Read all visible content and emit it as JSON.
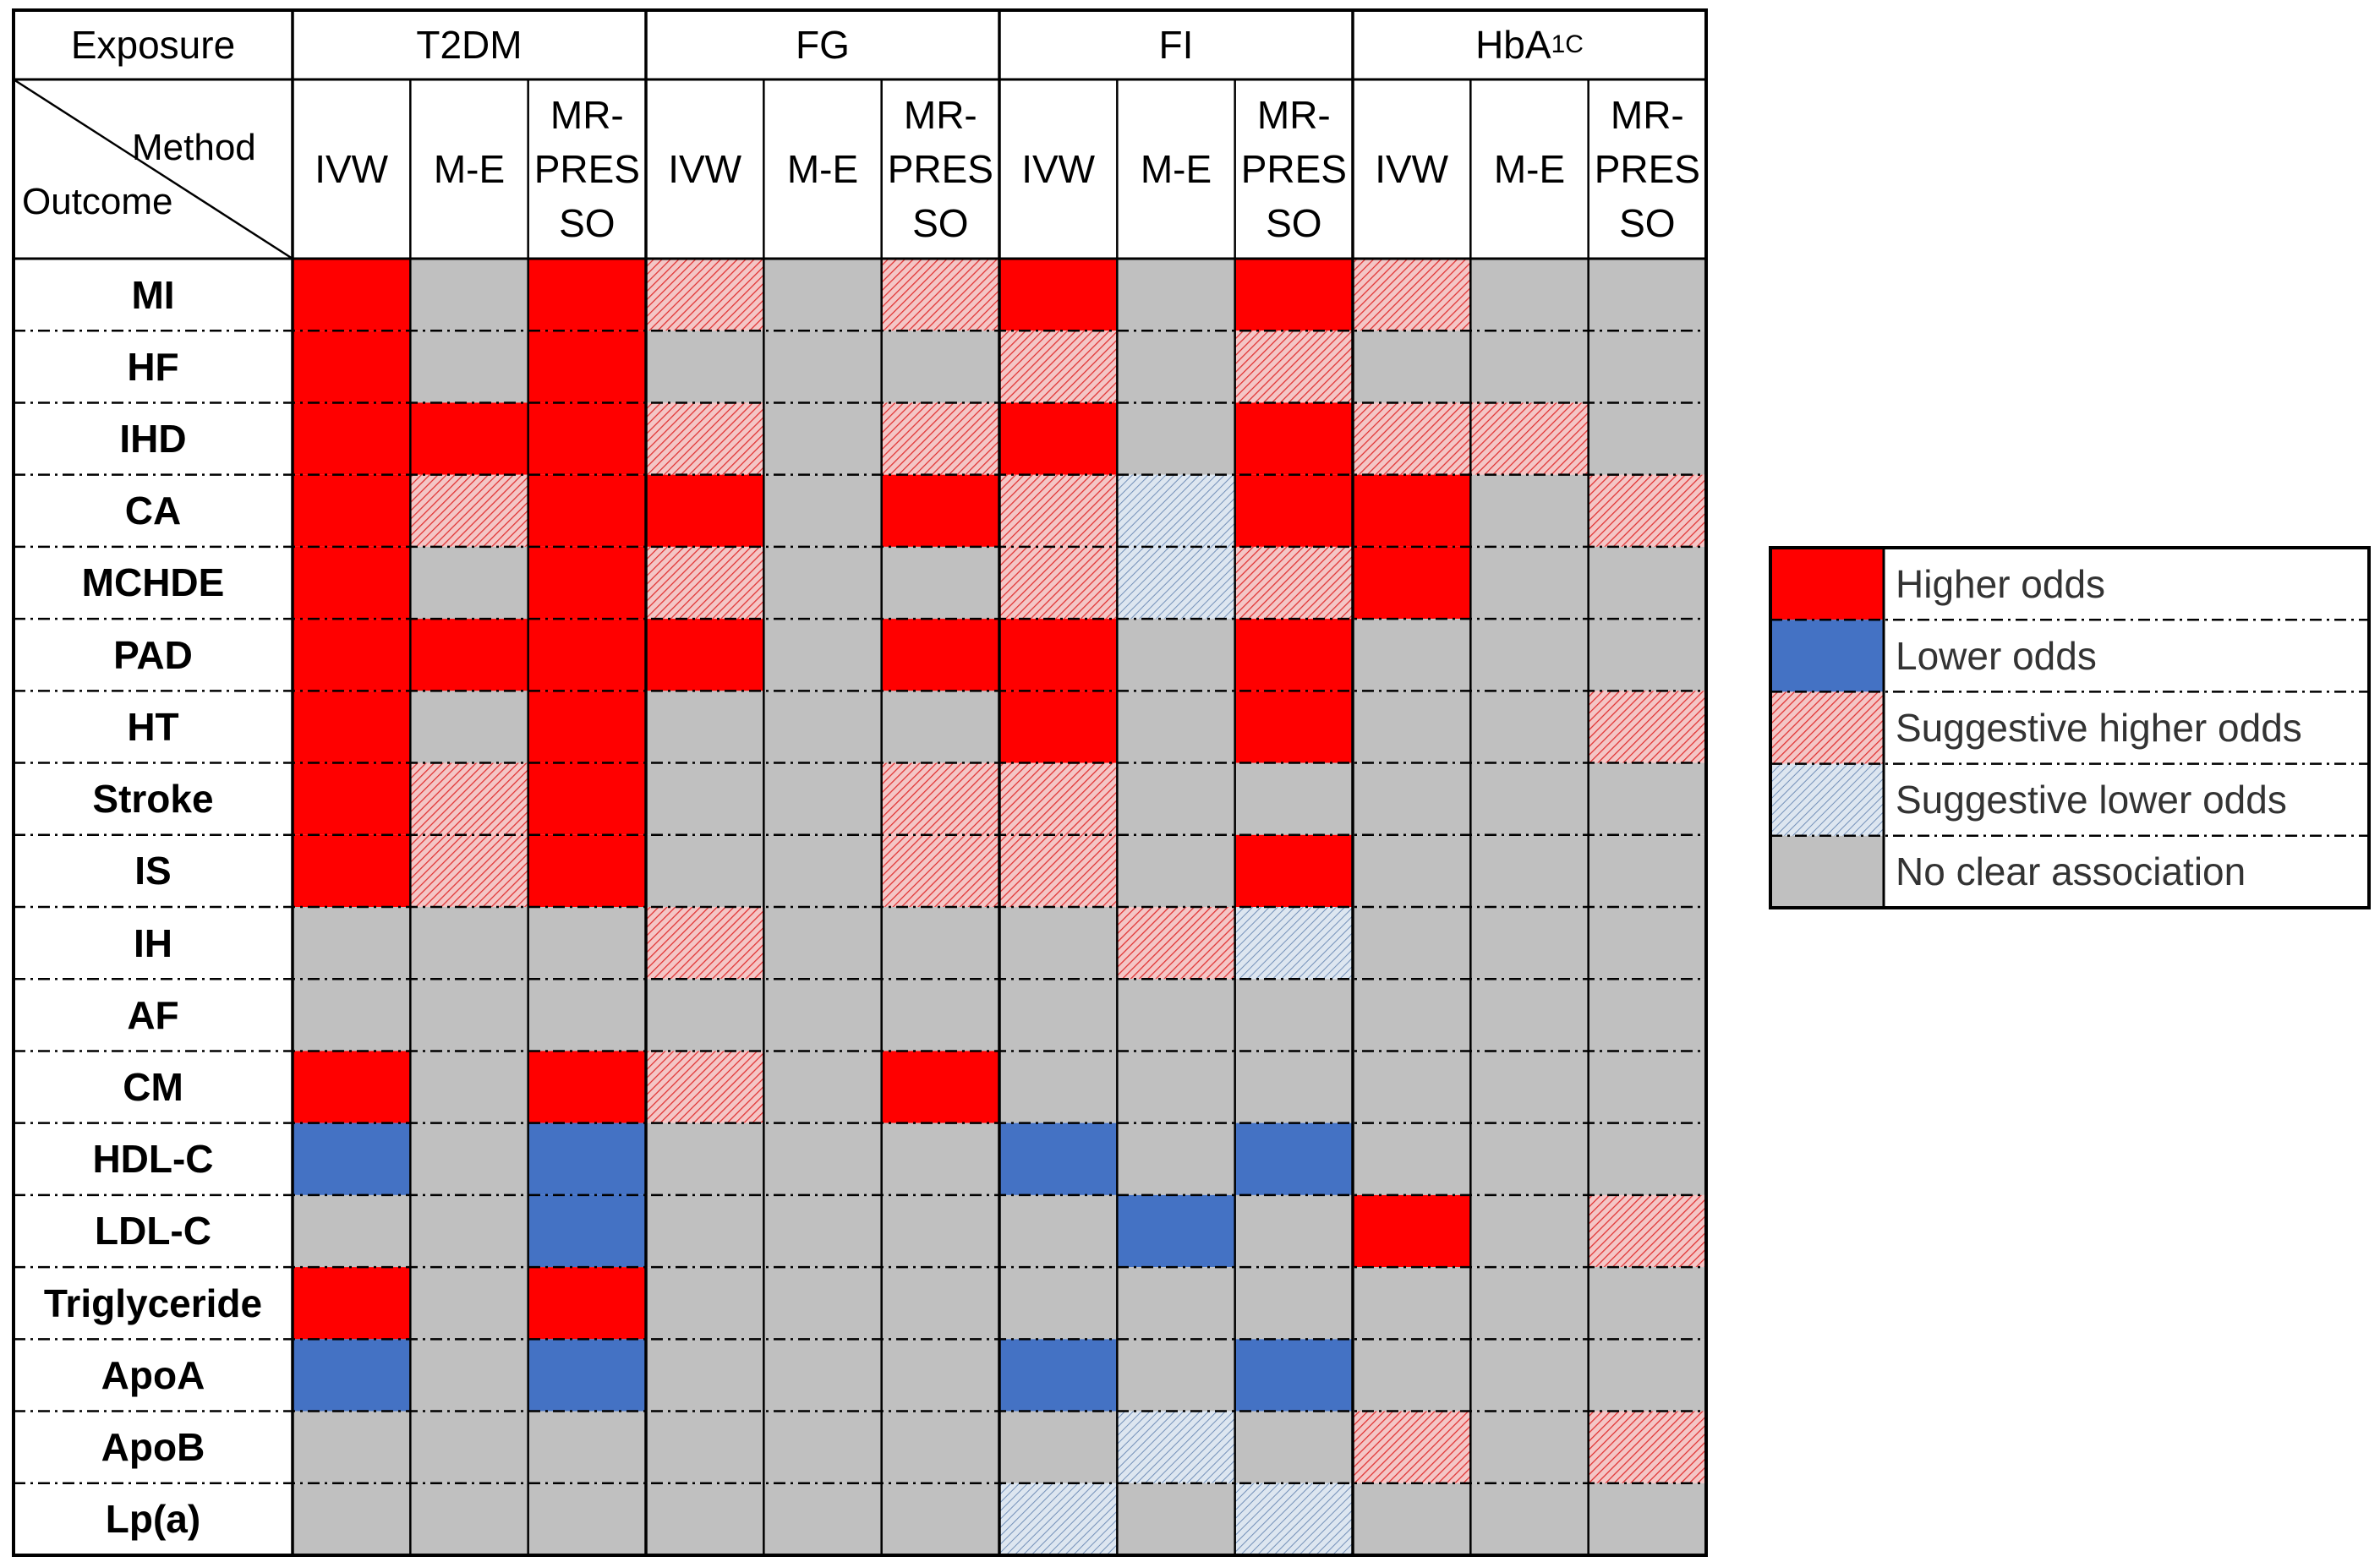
{
  "chart_data": {
    "type": "heatmap",
    "header": {
      "exposure_label": "Exposure",
      "method_label": "Method",
      "outcome_label": "Outcome"
    },
    "exposures": [
      "T2DM",
      "FG",
      "FI",
      "HbA1C"
    ],
    "methods": [
      {
        "key": "IVW",
        "line1": "IVW",
        "line2": "",
        "line3": ""
      },
      {
        "key": "M-E",
        "line1": "M-E",
        "line2": "",
        "line3": ""
      },
      {
        "key": "MR-PRESSO",
        "line1": "MR-",
        "line2": "PRES",
        "line3": "SO"
      }
    ],
    "outcomes": [
      "MI",
      "HF",
      "IHD",
      "CA",
      "MCHDE",
      "PAD",
      "HT",
      "Stroke",
      "IS",
      "IH",
      "AF",
      "CM",
      "HDL-C",
      "LDL-C",
      "Triglyceride",
      "ApoA",
      "ApoB",
      "Lp(a)"
    ],
    "categories": {
      "H": {
        "label": "Higher odds",
        "color": "#ff0000",
        "pattern": "solid"
      },
      "L": {
        "label": "Lower odds",
        "color": "#4472c4",
        "pattern": "solid"
      },
      "SH": {
        "label": "Suggestive higher odds",
        "color": "#ff0000",
        "pattern": "hatched"
      },
      "SL": {
        "label": "Suggestive lower odds",
        "color": "#4472c4",
        "pattern": "hatched"
      },
      "N": {
        "label": "No clear association",
        "color": "#c0c0c0",
        "pattern": "solid"
      }
    },
    "legend_order": [
      "H",
      "L",
      "SH",
      "SL",
      "N"
    ],
    "legend_position": "right",
    "column_order_note": "columns: T2DM(IVW,M-E,MR-PRESSO), FG(...), FI(...), HbA1C(...)",
    "cells": [
      [
        "H",
        "N",
        "H",
        "SH",
        "N",
        "SH",
        "H",
        "N",
        "H",
        "SH",
        "N",
        "N"
      ],
      [
        "H",
        "N",
        "H",
        "N",
        "N",
        "N",
        "SH",
        "N",
        "SH",
        "N",
        "N",
        "N"
      ],
      [
        "H",
        "H",
        "H",
        "SH",
        "N",
        "SH",
        "H",
        "N",
        "H",
        "SH",
        "SH",
        "N"
      ],
      [
        "H",
        "SH",
        "H",
        "H",
        "N",
        "H",
        "SH",
        "SL",
        "H",
        "H",
        "N",
        "SH"
      ],
      [
        "H",
        "N",
        "H",
        "SH",
        "N",
        "N",
        "SH",
        "SL",
        "SH",
        "H",
        "N",
        "N"
      ],
      [
        "H",
        "H",
        "H",
        "H",
        "N",
        "H",
        "H",
        "N",
        "H",
        "N",
        "N",
        "N"
      ],
      [
        "H",
        "N",
        "H",
        "N",
        "N",
        "N",
        "H",
        "N",
        "H",
        "N",
        "N",
        "SH"
      ],
      [
        "H",
        "SH",
        "H",
        "N",
        "N",
        "SH",
        "SH",
        "N",
        "N",
        "N",
        "N",
        "N"
      ],
      [
        "H",
        "SH",
        "H",
        "N",
        "N",
        "SH",
        "SH",
        "N",
        "H",
        "N",
        "N",
        "N"
      ],
      [
        "N",
        "N",
        "N",
        "SH",
        "N",
        "N",
        "N",
        "SH",
        "SL",
        "N",
        "N",
        "N"
      ],
      [
        "N",
        "N",
        "N",
        "N",
        "N",
        "N",
        "N",
        "N",
        "N",
        "N",
        "N",
        "N"
      ],
      [
        "H",
        "N",
        "H",
        "SH",
        "N",
        "H",
        "N",
        "N",
        "N",
        "N",
        "N",
        "N"
      ],
      [
        "L",
        "N",
        "L",
        "N",
        "N",
        "N",
        "L",
        "N",
        "L",
        "N",
        "N",
        "N"
      ],
      [
        "N",
        "N",
        "L",
        "N",
        "N",
        "N",
        "N",
        "L",
        "N",
        "H",
        "N",
        "SH"
      ],
      [
        "H",
        "N",
        "H",
        "N",
        "N",
        "N",
        "N",
        "N",
        "N",
        "N",
        "N",
        "N"
      ],
      [
        "L",
        "N",
        "L",
        "N",
        "N",
        "N",
        "L",
        "N",
        "L",
        "N",
        "N",
        "N"
      ],
      [
        "N",
        "N",
        "N",
        "N",
        "N",
        "N",
        "N",
        "SL",
        "N",
        "SH",
        "N",
        "SH"
      ],
      [
        "N",
        "N",
        "N",
        "N",
        "N",
        "N",
        "SL",
        "N",
        "SL",
        "N",
        "N",
        "N"
      ]
    ]
  }
}
